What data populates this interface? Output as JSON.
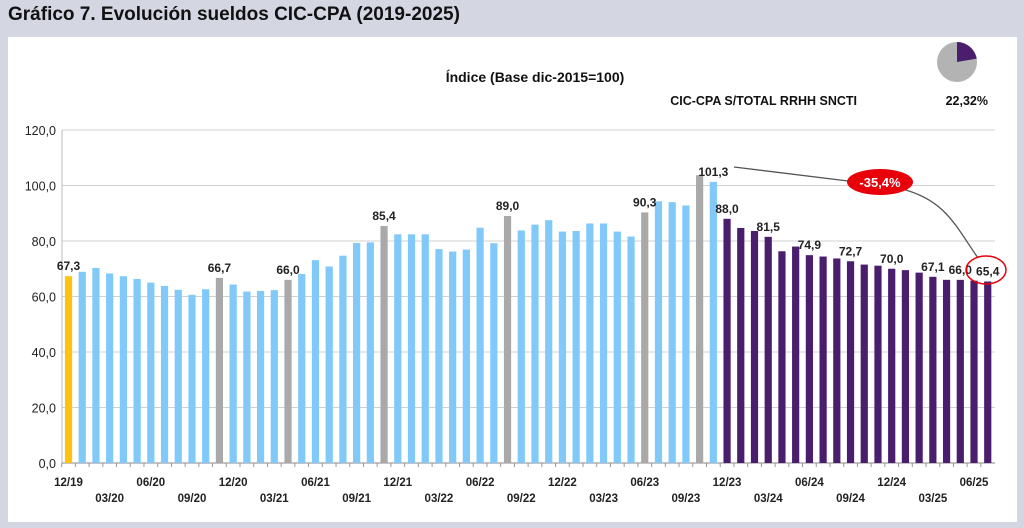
{
  "header": {
    "title": "Gráfico 7. Evolución sueldos CIC-CPA (2019-2025)"
  },
  "colors": {
    "yellow": "#ffc20e",
    "blue": "#80c9f9",
    "gray": "#a9a9a9",
    "purple": "#4a1d6d",
    "annotation": "#e8000b"
  },
  "share": {
    "label": "CIC-CPA S/TOTAL RRHH SNCTI",
    "value_text": "22,32%",
    "value": 22.32
  },
  "annotation": {
    "text": "-35,4%"
  },
  "chart_data": {
    "type": "bar",
    "title": "Índice (Base dic-2015=100)",
    "xlabel": "",
    "ylabel": "",
    "ylim": [
      0,
      120
    ],
    "yticks": [
      "0,0",
      "20,0",
      "40,0",
      "60,0",
      "80,0",
      "100,0",
      "120,0"
    ],
    "grid": true,
    "categories": [
      "12/19",
      "01/20",
      "02/20",
      "03/20",
      "04/20",
      "05/20",
      "06/20",
      "07/20",
      "08/20",
      "09/20",
      "10/20",
      "11/20",
      "12/20",
      "01/21",
      "02/21",
      "03/21",
      "04/21",
      "05/21",
      "06/21",
      "07/21",
      "08/21",
      "09/21",
      "10/21",
      "11/21",
      "12/21",
      "01/22",
      "02/22",
      "03/22",
      "04/22",
      "05/22",
      "06/22",
      "07/22",
      "08/22",
      "09/22",
      "10/22",
      "11/22",
      "12/22",
      "01/23",
      "02/23",
      "03/23",
      "04/23",
      "05/23",
      "06/23",
      "07/23",
      "08/23",
      "09/23",
      "10/23",
      "11/23",
      "12/23",
      "01/24",
      "02/24",
      "03/24",
      "04/24",
      "05/24",
      "06/24",
      "07/24",
      "08/24",
      "09/24",
      "10/24",
      "11/24",
      "12/24",
      "01/25",
      "02/25",
      "03/25",
      "04/25",
      "05/25",
      "06/25",
      "07/25"
    ],
    "values": [
      67.3,
      68.9,
      70.3,
      68.3,
      67.3,
      66.3,
      65.0,
      63.8,
      62.4,
      60.6,
      62.6,
      66.7,
      64.3,
      61.8,
      62.0,
      62.3,
      66.0,
      68.1,
      73.1,
      70.8,
      74.7,
      79.3,
      79.5,
      85.4,
      82.4,
      82.4,
      82.4,
      77.1,
      76.2,
      76.9,
      84.8,
      79.2,
      89.0,
      83.8,
      85.9,
      87.5,
      83.4,
      83.6,
      86.3,
      86.3,
      83.4,
      81.6,
      90.3,
      94.3,
      94.0,
      92.8,
      103.7,
      101.3,
      88.0,
      84.7,
      83.6,
      81.5,
      76.3,
      78.0,
      74.9,
      74.4,
      73.7,
      72.7,
      71.5,
      71.1,
      70.0,
      69.5,
      68.6,
      67.1,
      66.0,
      66.0,
      65.7,
      65.4
    ],
    "color_groups": [
      "yellow",
      "blue",
      "blue",
      "blue",
      "blue",
      "blue",
      "blue",
      "blue",
      "blue",
      "blue",
      "blue",
      "gray",
      "blue",
      "blue",
      "blue",
      "blue",
      "gray",
      "blue",
      "blue",
      "blue",
      "blue",
      "blue",
      "blue",
      "gray",
      "blue",
      "blue",
      "blue",
      "blue",
      "blue",
      "blue",
      "blue",
      "blue",
      "gray",
      "blue",
      "blue",
      "blue",
      "blue",
      "blue",
      "blue",
      "blue",
      "blue",
      "blue",
      "gray",
      "blue",
      "blue",
      "blue",
      "gray",
      "blue",
      "purple",
      "purple",
      "purple",
      "purple",
      "purple",
      "purple",
      "purple",
      "purple",
      "purple",
      "purple",
      "purple",
      "purple",
      "purple",
      "purple",
      "purple",
      "purple",
      "purple",
      "purple",
      "purple",
      "purple"
    ],
    "data_labels": {
      "0": "67,3",
      "11": "66,7",
      "16": "66,0",
      "23": "85,4",
      "32": "89,0",
      "42": "90,3",
      "47": "101,3",
      "48": "88,0",
      "51": "81,5",
      "54": "74,9",
      "57": "72,7",
      "60": "70,0",
      "63": "67,1",
      "65": "66,0",
      "67": "65,4"
    },
    "tick_labels": [
      "12/19",
      "03/20",
      "06/20",
      "09/20",
      "12/20",
      "03/21",
      "06/21",
      "09/21",
      "12/21",
      "03/22",
      "06/22",
      "09/22",
      "12/22",
      "03/23",
      "06/23",
      "09/23",
      "12/23",
      "03/24",
      "06/24",
      "09/24",
      "12/24",
      "03/25",
      "06/25"
    ]
  }
}
